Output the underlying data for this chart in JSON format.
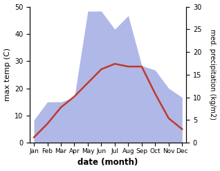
{
  "months": [
    "Jan",
    "Feb",
    "Mar",
    "Apr",
    "May",
    "Jun",
    "Jul",
    "Aug",
    "Sep",
    "Oct",
    "Nov",
    "Dec"
  ],
  "precipitation": [
    5,
    9,
    9,
    10,
    29,
    29,
    25,
    28,
    17,
    16,
    12,
    10
  ],
  "max_temp": [
    2,
    7,
    13,
    17,
    22,
    27,
    29,
    28,
    28,
    18,
    9,
    5
  ],
  "precip_color": "#b0b8e8",
  "temp_color": "#c0392b",
  "temp_ylim": [
    0,
    50
  ],
  "precip_ylim": [
    0,
    30
  ],
  "xlabel": "date (month)",
  "ylabel_left": "max temp (C)",
  "ylabel_right": "med. precipitation (kg/m2)",
  "bg_color": "#ffffff",
  "line_width": 1.8
}
